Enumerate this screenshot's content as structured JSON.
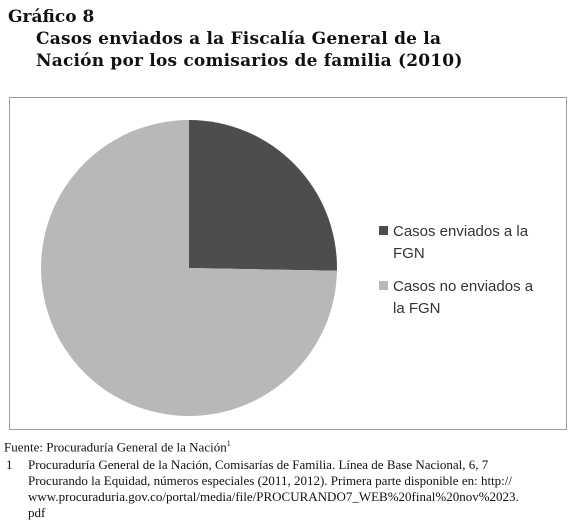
{
  "figure": {
    "label": "Gráfico 8",
    "title_line1": "Casos enviados a la Fiscalía General de la",
    "title_line2": "Nación por los comisarios de familia (2010)"
  },
  "chart_data": {
    "type": "pie",
    "title": "Casos enviados a la Fiscalía General de la Nación por los comisarios de familia (2010)",
    "series": [
      {
        "values": [
          25.3,
          74.7
        ],
        "labels": [
          "Casos enviados a la FGN",
          "Casos no enviados a la FGN"
        ],
        "colors": [
          "#4d4d4d",
          "#b8b8b8"
        ]
      }
    ],
    "legend": {
      "position": "right",
      "entries": [
        {
          "line1": "Casos enviados a la",
          "line2": "FGN"
        },
        {
          "line1": "Casos no enviados a",
          "line2": "la FGN"
        }
      ]
    }
  },
  "footer": {
    "source": "Fuente: Procuraduría General de la Nación",
    "source_ref": "1",
    "note_number": "1",
    "note_line1": "Procuraduría General de la Nación, Comisarías de Familia. Línea de Base Nacional, 6, 7",
    "note_line2": "Procurando la Equidad, números especiales (2011, 2012). Primera parte disponible en: http://",
    "note_line3": "www.procuraduria.gov.co/portal/media/file/PROCURANDO7_WEB%20final%20nov%2023.",
    "note_line4": "pdf"
  }
}
